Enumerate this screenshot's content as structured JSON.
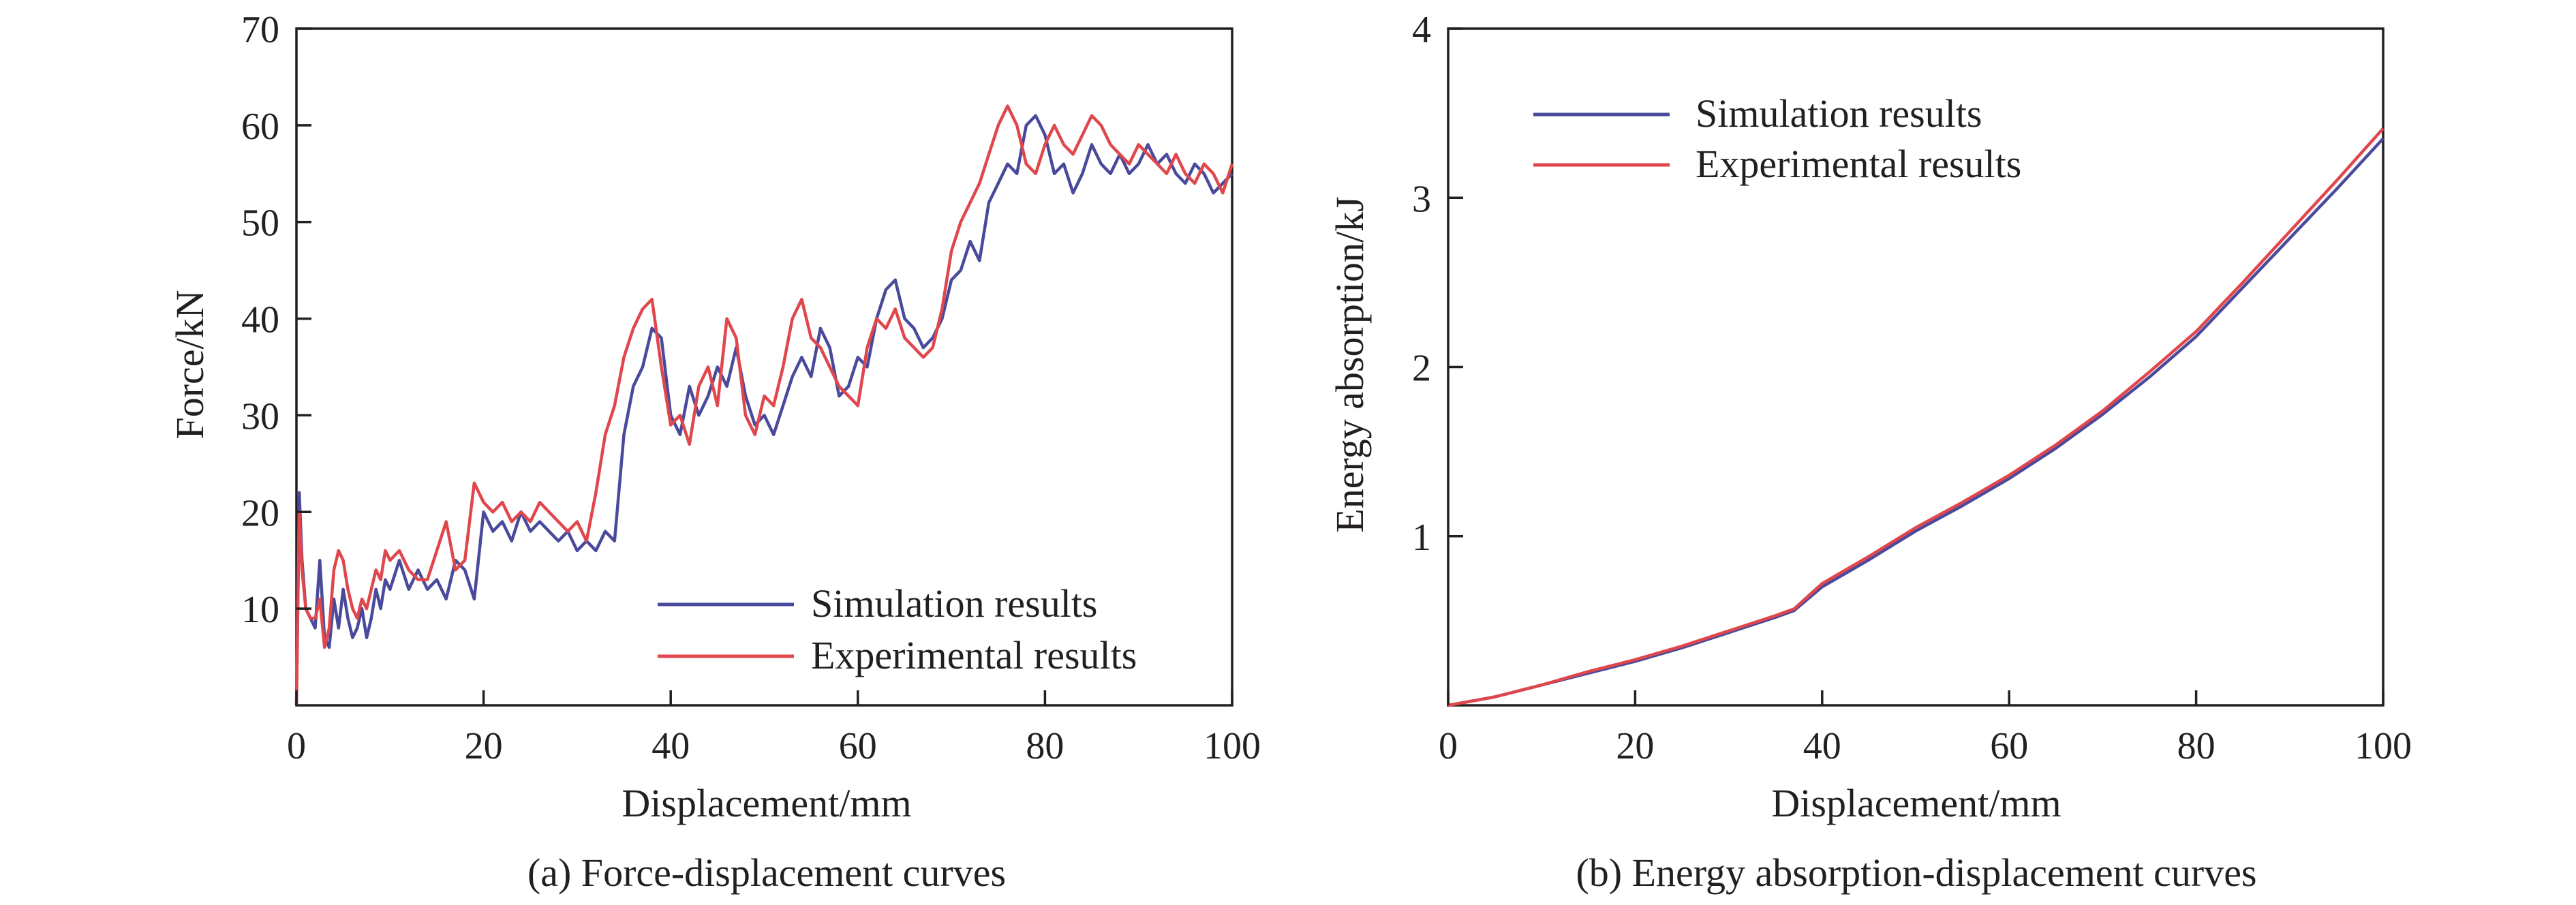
{
  "colors": {
    "simulation": "#4a4a9c",
    "experimental": "#e0474c",
    "axis": "#231f20"
  },
  "chart_data": [
    {
      "type": "line",
      "caption": "(a) Force-displacement curves",
      "xlabel": "Displacement/mm",
      "ylabel": "Force/kN",
      "xlim": [
        0,
        100
      ],
      "ylim": [
        0,
        70
      ],
      "xticks": [
        "0",
        "20",
        "40",
        "60",
        "80",
        "100"
      ],
      "yticks": [
        "10",
        "20",
        "30",
        "40",
        "50",
        "60",
        "70"
      ],
      "legend_position": "bottom-right",
      "series": [
        {
          "name": "Simulation results",
          "color_key": "simulation",
          "x": [
            0,
            0.3,
            0.6,
            1,
            1.5,
            2,
            2.5,
            3,
            3.5,
            4,
            4.5,
            5,
            5.5,
            6,
            6.5,
            7,
            7.5,
            8,
            8.5,
            9,
            9.5,
            10,
            11,
            12,
            13,
            14,
            15,
            16,
            17,
            18,
            19,
            20,
            21,
            22,
            23,
            24,
            25,
            26,
            27,
            28,
            29,
            30,
            31,
            32,
            33,
            34,
            35,
            36,
            37,
            38,
            39,
            40,
            41,
            42,
            43,
            44,
            45,
            46,
            47,
            48,
            49,
            50,
            51,
            52,
            53,
            54,
            55,
            56,
            57,
            58,
            59,
            60,
            61,
            62,
            63,
            64,
            65,
            66,
            67,
            68,
            69,
            70,
            71,
            72,
            73,
            74,
            75,
            76,
            77,
            78,
            79,
            80,
            81,
            82,
            83,
            84,
            85,
            86,
            87,
            88,
            89,
            90,
            91,
            92,
            93,
            94,
            95,
            96,
            97,
            98,
            99,
            100
          ],
          "y": [
            0,
            22,
            15,
            10,
            9,
            8,
            15,
            7,
            6,
            11,
            8,
            12,
            9,
            7,
            8,
            10,
            7,
            9,
            12,
            10,
            13,
            12,
            15,
            12,
            14,
            12,
            13,
            11,
            15,
            14,
            11,
            20,
            18,
            19,
            17,
            20,
            18,
            19,
            18,
            17,
            18,
            16,
            17,
            16,
            18,
            17,
            28,
            33,
            35,
            39,
            38,
            30,
            28,
            33,
            30,
            32,
            35,
            33,
            37,
            32,
            29,
            30,
            28,
            31,
            34,
            36,
            34,
            39,
            37,
            32,
            33,
            36,
            35,
            40,
            43,
            44,
            40,
            39,
            37,
            38,
            40,
            44,
            45,
            48,
            46,
            52,
            54,
            56,
            55,
            60,
            61,
            59,
            55,
            56,
            53,
            55,
            58,
            56,
            55,
            57,
            55,
            56,
            58,
            56,
            57,
            55,
            54,
            56,
            55,
            53,
            54,
            55
          ]
        },
        {
          "name": "Experimental results",
          "color_key": "experimental",
          "x": [
            0,
            0.3,
            0.6,
            1,
            1.5,
            2,
            2.5,
            3,
            3.5,
            4,
            4.5,
            5,
            5.5,
            6,
            6.5,
            7,
            7.5,
            8,
            8.5,
            9,
            9.5,
            10,
            11,
            12,
            13,
            14,
            15,
            16,
            17,
            18,
            19,
            20,
            21,
            22,
            23,
            24,
            25,
            26,
            27,
            28,
            29,
            30,
            31,
            32,
            33,
            34,
            35,
            36,
            37,
            38,
            39,
            40,
            41,
            42,
            43,
            44,
            45,
            46,
            47,
            48,
            49,
            50,
            51,
            52,
            53,
            54,
            55,
            56,
            57,
            58,
            59,
            60,
            61,
            62,
            63,
            64,
            65,
            66,
            67,
            68,
            69,
            70,
            71,
            72,
            73,
            74,
            75,
            76,
            77,
            78,
            79,
            80,
            81,
            82,
            83,
            84,
            85,
            86,
            87,
            88,
            89,
            90,
            91,
            92,
            93,
            94,
            95,
            96,
            97,
            98,
            99,
            100
          ],
          "y": [
            0,
            20,
            14,
            10,
            9,
            9,
            11,
            6,
            8,
            14,
            16,
            15,
            12,
            10,
            9,
            11,
            10,
            12,
            14,
            13,
            16,
            15,
            16,
            14,
            13,
            13,
            16,
            19,
            14,
            15,
            23,
            21,
            20,
            21,
            19,
            20,
            19,
            21,
            20,
            19,
            18,
            19,
            17,
            22,
            28,
            31,
            36,
            39,
            41,
            42,
            35,
            29,
            30,
            27,
            33,
            35,
            31,
            40,
            38,
            30,
            28,
            32,
            31,
            35,
            40,
            42,
            38,
            37,
            35,
            33,
            32,
            31,
            37,
            40,
            39,
            41,
            38,
            37,
            36,
            37,
            41,
            47,
            50,
            52,
            54,
            57,
            60,
            62,
            60,
            56,
            55,
            58,
            60,
            58,
            57,
            59,
            61,
            60,
            58,
            57,
            56,
            58,
            57,
            56,
            55,
            57,
            55,
            54,
            56,
            55,
            53,
            56
          ]
        }
      ]
    },
    {
      "type": "line",
      "caption": "(b) Energy absorption-displacement curves",
      "xlabel": "Displacement/mm",
      "ylabel": "Energy absorption/kJ",
      "xlim": [
        0,
        100
      ],
      "ylim": [
        0,
        4
      ],
      "xticks": [
        "0",
        "20",
        "40",
        "60",
        "80",
        "100"
      ],
      "yticks": [
        "1",
        "2",
        "3",
        "4"
      ],
      "legend_position": "top-left",
      "series": [
        {
          "name": "Simulation results",
          "color_key": "simulation",
          "x": [
            0,
            5,
            10,
            15,
            20,
            25,
            30,
            35,
            37,
            40,
            45,
            50,
            55,
            60,
            65,
            70,
            75,
            80,
            85,
            90,
            95,
            100
          ],
          "y": [
            0,
            0.05,
            0.12,
            0.19,
            0.26,
            0.34,
            0.43,
            0.52,
            0.56,
            0.7,
            0.86,
            1.03,
            1.18,
            1.34,
            1.52,
            1.72,
            1.94,
            2.18,
            2.47,
            2.76,
            3.05,
            3.35
          ]
        },
        {
          "name": "Experimental results",
          "color_key": "experimental",
          "x": [
            0,
            5,
            10,
            15,
            20,
            25,
            30,
            35,
            37,
            40,
            45,
            50,
            55,
            60,
            65,
            70,
            75,
            80,
            85,
            90,
            95,
            100
          ],
          "y": [
            0,
            0.05,
            0.12,
            0.2,
            0.27,
            0.35,
            0.44,
            0.53,
            0.57,
            0.72,
            0.88,
            1.05,
            1.2,
            1.36,
            1.54,
            1.74,
            1.97,
            2.21,
            2.5,
            2.8,
            3.1,
            3.41
          ]
        }
      ]
    }
  ]
}
